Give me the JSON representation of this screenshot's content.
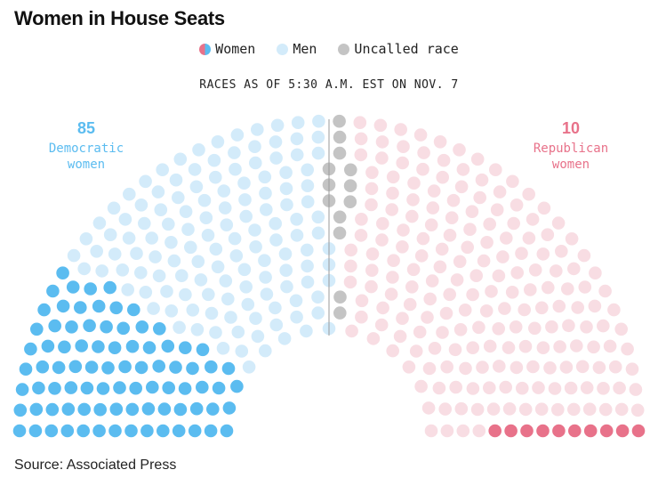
{
  "title": "Women in House Seats",
  "legend": [
    {
      "label": "Women",
      "key": "women"
    },
    {
      "label": "Men",
      "key": "men"
    },
    {
      "label": "Uncalled race",
      "key": "uncalled"
    }
  ],
  "subtitle": "RACES AS OF 5:30 A.M. EST ON NOV. 7",
  "source": "Source: Associated Press",
  "colors": {
    "dem_women": "#5bbcf0",
    "dem_men": "#d3ebfa",
    "uncalled": "#c4c4c4",
    "rep_men": "#f8dde3",
    "rep_women": "#e8728a",
    "divider": "#9a9a9a"
  },
  "chart_data": {
    "type": "parliament",
    "total_seats": 435,
    "segments": [
      {
        "party": "Democratic",
        "group": "women",
        "seats": 85
      },
      {
        "party": "Democratic",
        "group": "men",
        "seats": 133
      },
      {
        "party": "Uncalled",
        "group": "uncalled",
        "seats": 13
      },
      {
        "party": "Republican",
        "group": "men",
        "seats": 194
      },
      {
        "party": "Republican",
        "group": "women",
        "seats": 10
      }
    ],
    "annotations": {
      "dem": {
        "count": "85",
        "label_line1": "Democratic",
        "label_line2": "women"
      },
      "rep": {
        "count": "10",
        "label_line1": "Republican",
        "label_line2": "women"
      }
    }
  }
}
